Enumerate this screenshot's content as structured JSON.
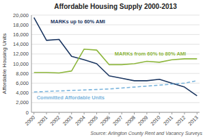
{
  "chart_data": {
    "type": "line",
    "title": "Affordable Housing Supply 2000-2013",
    "ylabel": "Affordable Housing Units",
    "annotations": [
      "Source: Arlington County Rent and Vacancy Surveys"
    ],
    "x": [
      2000,
      2001,
      2002,
      2003,
      2004,
      2005,
      2006,
      2007,
      2008,
      2009,
      2010,
      2011,
      2012,
      2013
    ],
    "series": [
      {
        "name": "MARKs  up to 60% AMI",
        "color": "#1a3560",
        "values": [
          19500,
          14800,
          15000,
          11500,
          10800,
          10000,
          7500,
          7000,
          6500,
          6500,
          6800,
          6000,
          5200,
          3400
        ]
      },
      {
        "name": "MARKs from 60% to 80% AMI",
        "color": "#8db63c",
        "values": [
          8200,
          8200,
          8100,
          8500,
          13000,
          12800,
          9800,
          9800,
          10000,
          10500,
          10300,
          10800,
          11000,
          11000
        ]
      },
      {
        "name": "Committed Affordable Units",
        "color": "#7ab4dc",
        "line_style": "dashed",
        "values": [
          4200,
          4300,
          4400,
          4500,
          4600,
          4700,
          4800,
          5000,
          5200,
          5400,
          5600,
          5800,
          6000,
          6500
        ]
      }
    ],
    "xlim": [
      1999.8,
      2013.2
    ],
    "xticks": [
      2000,
      2001,
      2002,
      2003,
      2004,
      2005,
      2006,
      2007,
      2008,
      2009,
      2010,
      2011,
      2012,
      2013
    ],
    "ylim": [
      0,
      20000
    ],
    "yticks": [
      0,
      {
        "value": 2000,
        "label": "2,000"
      },
      {
        "value": 4000,
        "label": "4,000"
      },
      {
        "value": 6000,
        "label": "6,000"
      },
      {
        "value": 8000,
        "label": "8,000"
      },
      {
        "value": 10000,
        "label": "10,000"
      },
      {
        "value": 12000,
        "label": "12,000"
      },
      {
        "value": 14000,
        "label": "14,000"
      },
      {
        "value": 16000,
        "label": "16,000"
      },
      {
        "value": 18000,
        "label": "18,000"
      },
      {
        "value": 20000,
        "label": "20,000"
      }
    ],
    "grid": true
  }
}
